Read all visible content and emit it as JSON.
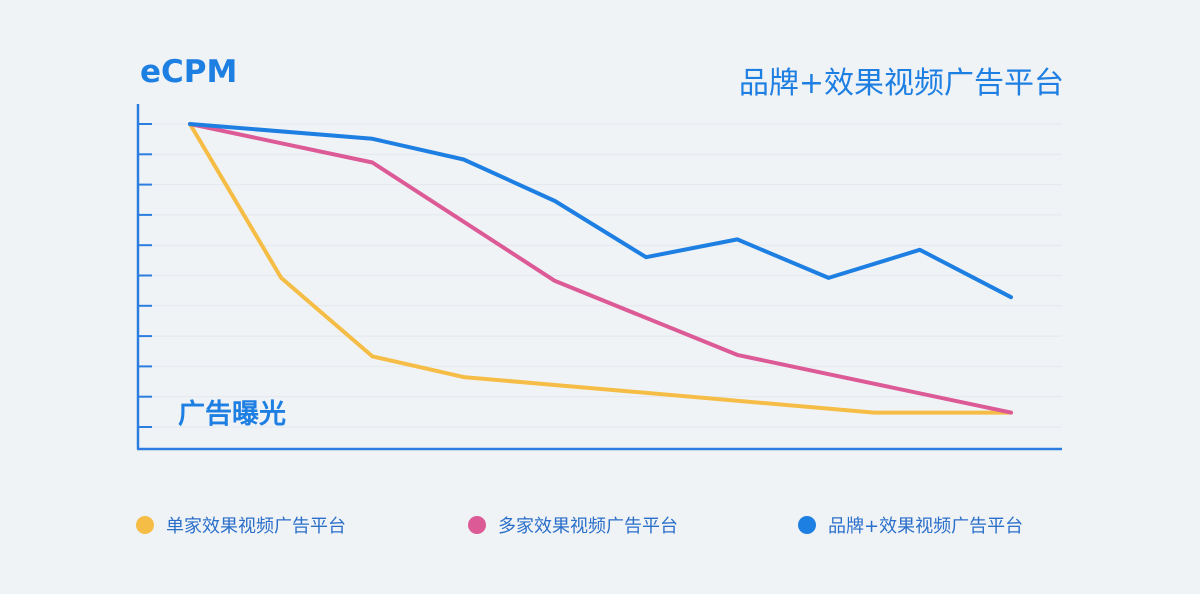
{
  "chart_data": {
    "type": "line",
    "title": "品牌+效果视频广告平台",
    "ylabel": "eCPM",
    "xlabel": "广告曝光",
    "ylim": [
      0,
      10
    ],
    "grid": true,
    "legend_position": "bottom",
    "x": [
      1,
      2,
      3,
      4,
      5,
      6,
      7,
      8,
      9,
      10
    ],
    "series": [
      {
        "name": "单家效果视频广告平台",
        "color": "#f5bd45",
        "points": [
          [
            1,
            10
          ],
          [
            2,
            4.8
          ],
          [
            3,
            2.15
          ],
          [
            4,
            1.45
          ],
          [
            8.5,
            0.25
          ],
          [
            10,
            0.25
          ]
        ],
        "values_at": [
          [
            1,
            10
          ],
          [
            2,
            4.8
          ],
          [
            3,
            2.15
          ],
          [
            4,
            1.45
          ],
          [
            6,
            0.55
          ],
          [
            7,
            0.55
          ],
          [
            8.5,
            0.25
          ],
          [
            10,
            0.25
          ]
        ]
      },
      {
        "name": "多家效果视频广告平台",
        "color": "#dc5a96",
        "points": [
          [
            1,
            10
          ],
          [
            3,
            8.7
          ],
          [
            5,
            4.7
          ],
          [
            7,
            2.2
          ],
          [
            10,
            0.25
          ]
        ]
      },
      {
        "name": "品牌+效果视频广告平台",
        "color": "#1e7fe3",
        "points": [
          [
            1,
            10
          ],
          [
            3,
            9.5
          ],
          [
            4,
            8.8
          ],
          [
            5,
            7.4
          ],
          [
            6,
            5.5
          ],
          [
            7,
            6.1
          ],
          [
            8,
            4.8
          ],
          [
            9,
            5.75
          ],
          [
            10,
            4.15
          ]
        ]
      }
    ]
  },
  "legend": [
    {
      "label": "单家效果视频广告平台",
      "color": "#f5bd45"
    },
    {
      "label": "多家效果视频广告平台",
      "color": "#dc5a96"
    },
    {
      "label": "品牌+效果视频广告平台",
      "color": "#1e7fe3"
    }
  ]
}
